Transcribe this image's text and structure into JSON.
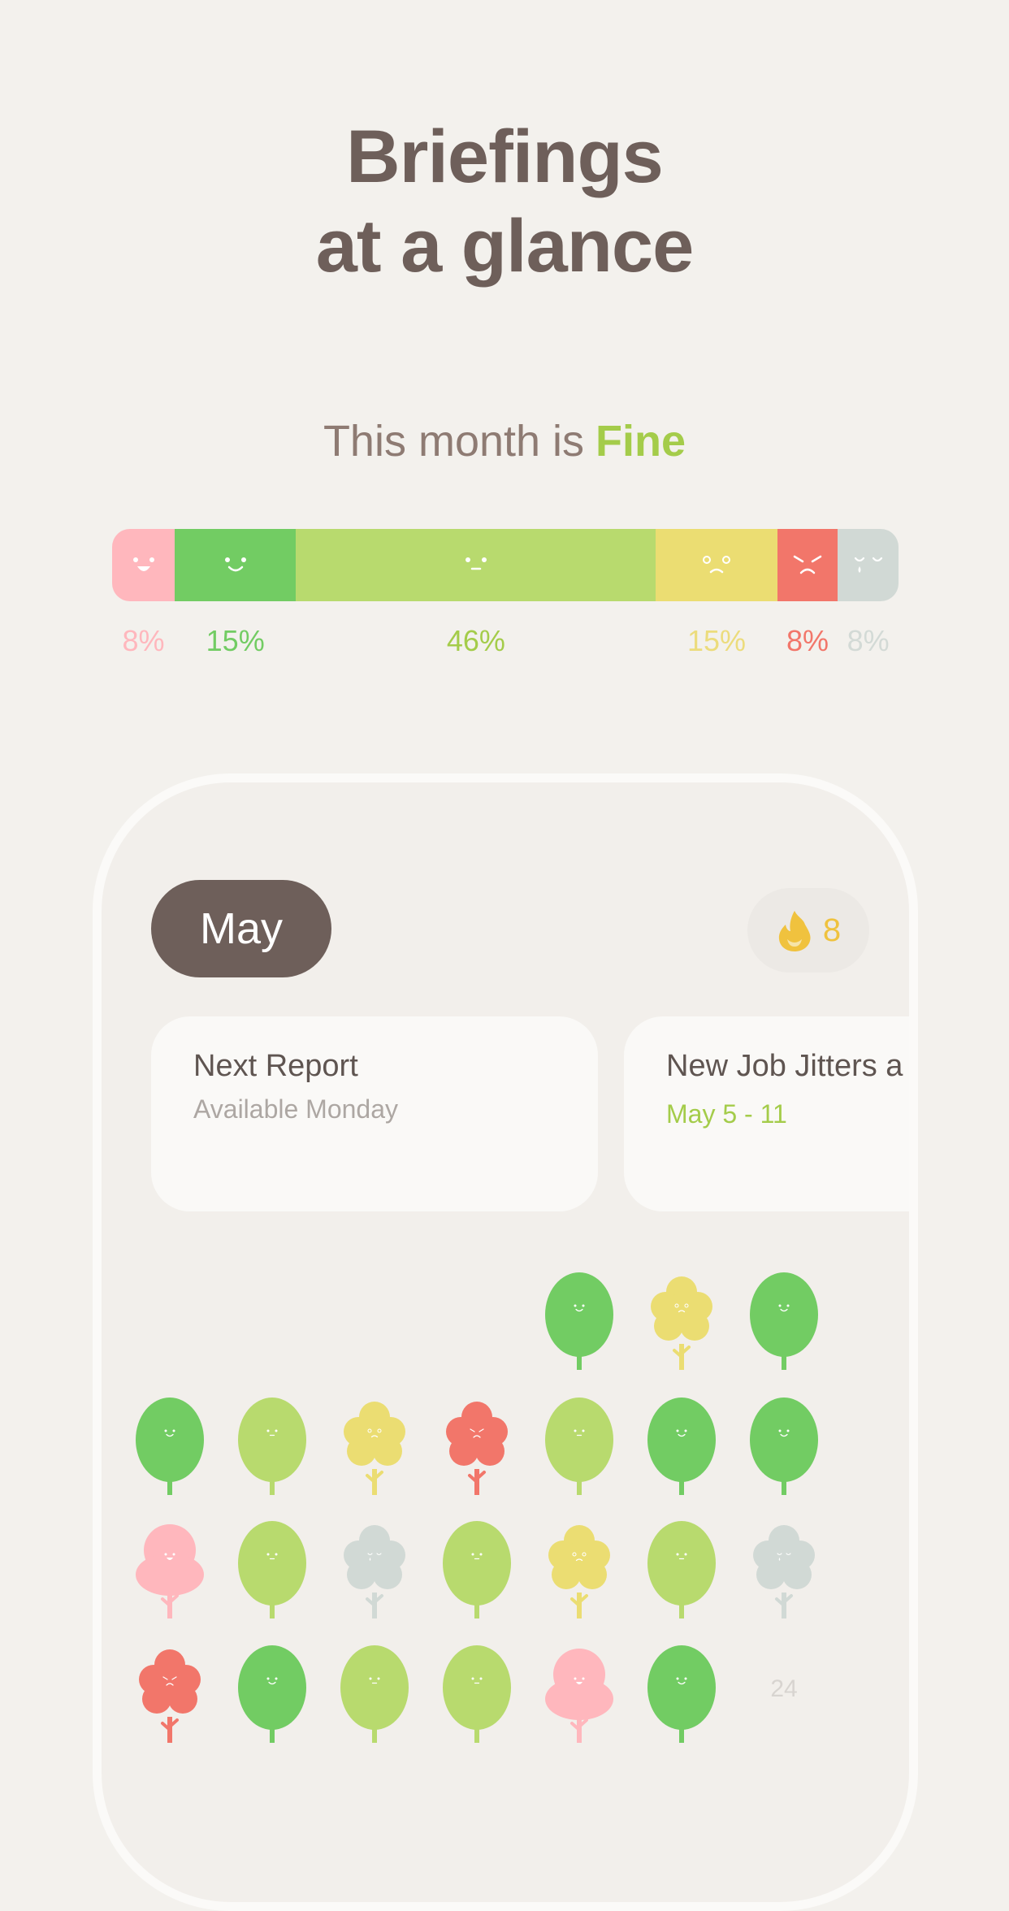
{
  "headline": {
    "line1": "Briefings",
    "line2": "at a glance"
  },
  "summary": {
    "prefix": "This month is",
    "mood": "Fine"
  },
  "colors": {
    "great": "#ffb7bd",
    "good": "#72cc63",
    "fine": "#b8da6e",
    "meh": "#ebdd72",
    "bad": "#f2766a",
    "awful": "#d1d9d5",
    "background": "#f3f1ed",
    "text_dark": "#6e5f5a"
  },
  "mood_distribution": [
    {
      "mood": "great",
      "percent": 8,
      "label": "8%",
      "color": "#ffb7bd",
      "label_color": "#ffb7bd"
    },
    {
      "mood": "good",
      "percent": 15.5,
      "label": "15%",
      "color": "#72cc63",
      "label_color": "#72cc63"
    },
    {
      "mood": "fine",
      "percent": 46,
      "label": "46%",
      "color": "#b8da6e",
      "label_color": "#a4cc4a"
    },
    {
      "mood": "meh",
      "percent": 15.5,
      "label": "15%",
      "color": "#ebdd72",
      "label_color": "#ecdc7c"
    },
    {
      "mood": "bad",
      "percent": 7.75,
      "label": "8%",
      "color": "#f2766a",
      "label_color": "#f2766a"
    },
    {
      "mood": "awful",
      "percent": 7.75,
      "label": "8%",
      "color": "#d1d9d5",
      "label_color": "#d3dad6"
    }
  ],
  "calendar_header": {
    "month": "May",
    "streak_icon": "flame-icon",
    "streak_count": "8"
  },
  "cards": [
    {
      "title": "Next Report",
      "subtitle": "Available Monday"
    },
    {
      "title": "New Job Jitters a Weekend Bliss",
      "date": "May 5 - 11"
    }
  ],
  "calendar": {
    "start_column": 4,
    "days": [
      "good",
      "meh",
      "good",
      "good",
      "fine",
      "meh",
      "bad",
      "fine",
      "good",
      "good",
      "great",
      "fine",
      "awful",
      "fine",
      "meh",
      "fine",
      "awful",
      "bad",
      "good",
      "fine",
      "fine",
      "great",
      "good"
    ],
    "next_day_label": "24"
  }
}
